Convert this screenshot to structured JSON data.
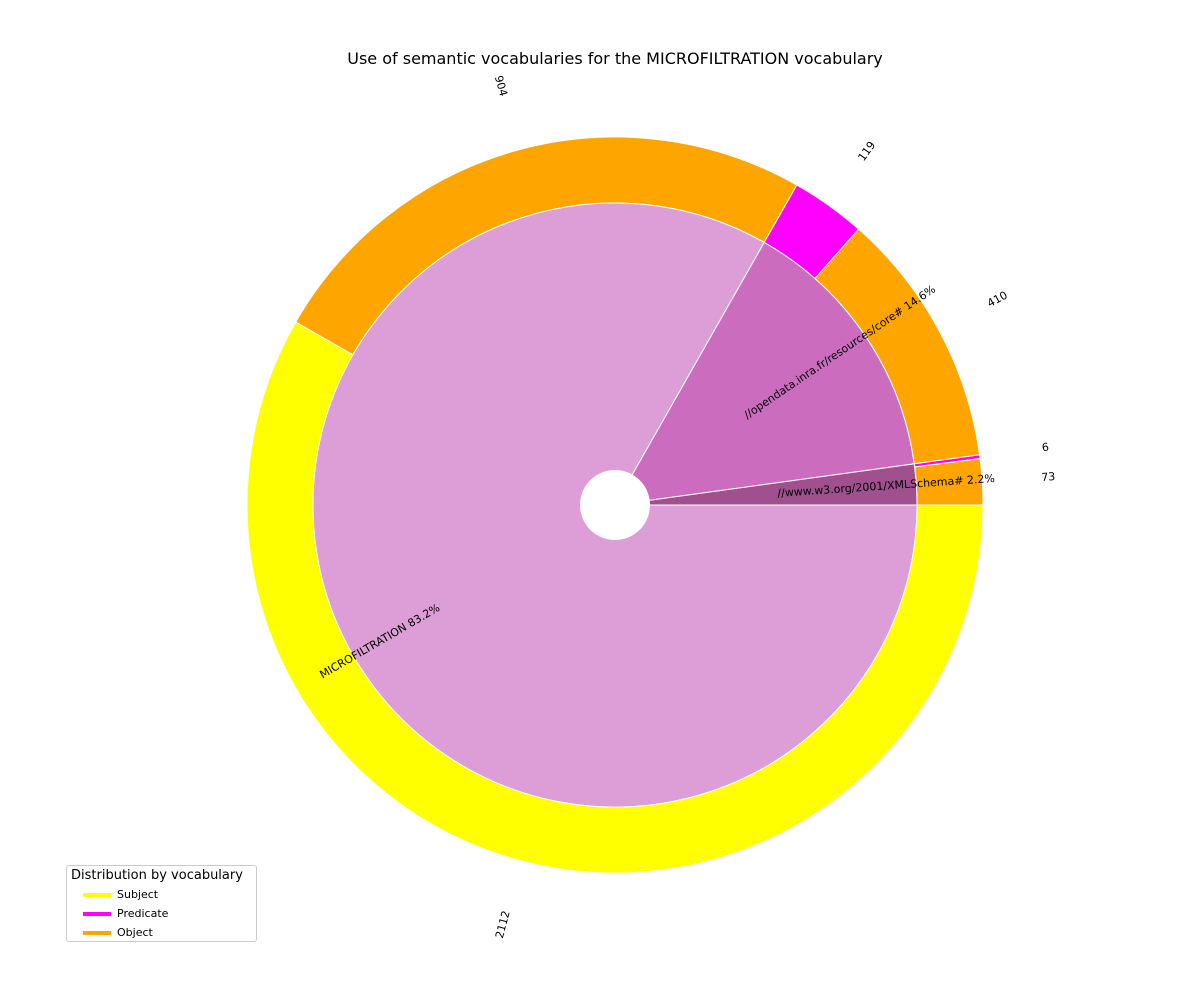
{
  "chart_data": {
    "type": "pie",
    "title": "Use of semantic vocabularies for the MICROFILTRATION vocabulary",
    "inner_ring": {
      "slices": [
        {
          "label": "//www.w3.org/2001/XMLSchema#",
          "percent_label": "2.2%",
          "value": 2.2,
          "color": "#a0508f"
        },
        {
          "label": "//opendata.inra.fr/resources/core#",
          "percent_label": "14.6%",
          "value": 14.6,
          "color": "#cc6cbf"
        },
        {
          "label": "MICROFILTRATION",
          "percent_label": "83.2%",
          "value": 83.2,
          "color": "#dd9dd6"
        }
      ]
    },
    "outer_ring": {
      "groups": [
        {
          "vocab": "//www.w3.org/2001/XMLSchema#",
          "segments": [
            {
              "role": "Object",
              "value": 73,
              "label": "73"
            },
            {
              "role": "Predicate",
              "value": 6,
              "label": "6"
            }
          ]
        },
        {
          "vocab": "//opendata.inra.fr/resources/core#",
          "segments": [
            {
              "role": "Object",
              "value": 410,
              "label": "410"
            },
            {
              "role": "Predicate",
              "value": 119,
              "label": "119"
            }
          ]
        },
        {
          "vocab": "MICROFILTRATION",
          "segments": [
            {
              "role": "Object",
              "value": 904,
              "label": "904"
            },
            {
              "role": "Subject",
              "value": 2112,
              "label": "2112"
            }
          ]
        }
      ]
    },
    "role_colors": {
      "Subject": "#ffff00",
      "Predicate": "#ff00ff",
      "Object": "#ffa500"
    },
    "legend": {
      "title": "Distribution by vocabulary",
      "placement": "lower-left",
      "items": [
        {
          "label": "Subject",
          "color": "#ffff00"
        },
        {
          "label": "Predicate",
          "color": "#ff00ff"
        },
        {
          "label": "Object",
          "color": "#ffa500"
        }
      ]
    }
  }
}
